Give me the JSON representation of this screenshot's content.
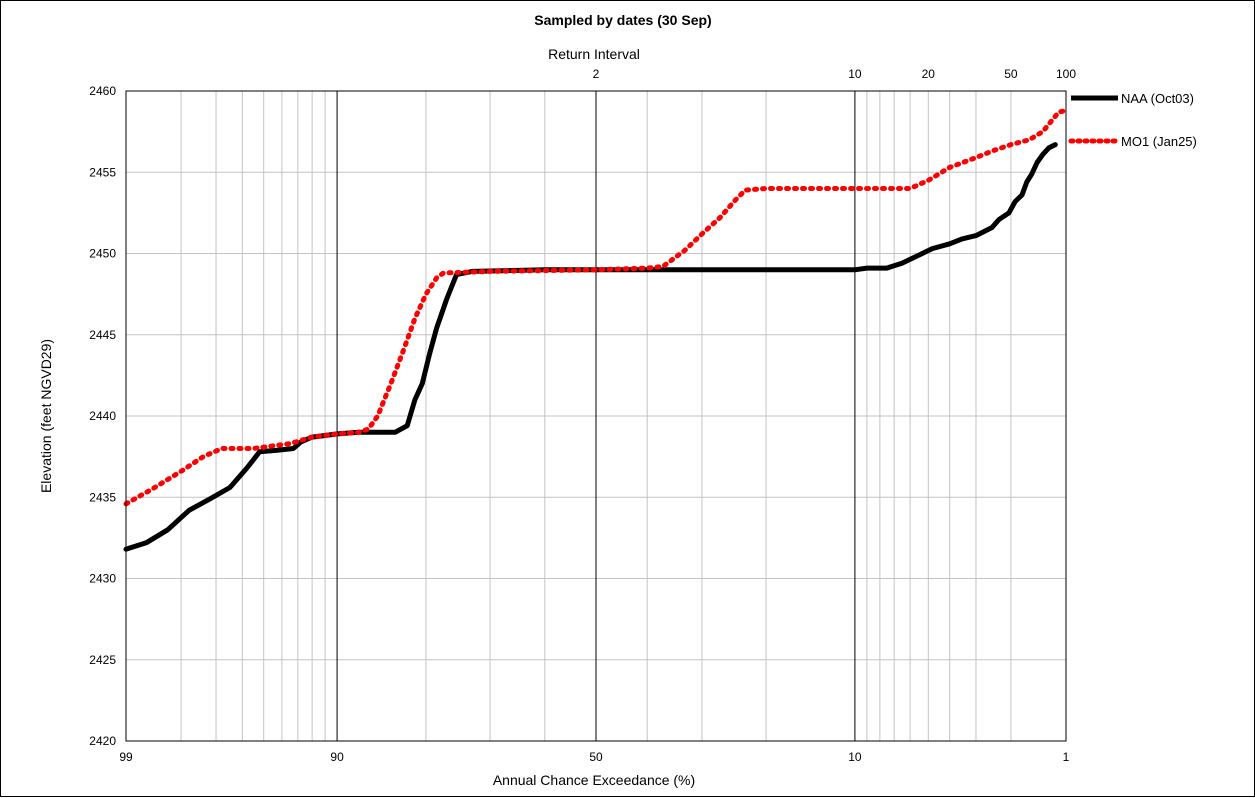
{
  "chart_data": {
    "type": "line",
    "title": "Sampled by dates (30 Sep)",
    "xlabel": "Annual Chance Exceedance (%)",
    "ylabel": "Elevation (feet NGVD29)",
    "x2label": "Return Interval",
    "x_scale": "normal probability (exceedance %)",
    "x_ticks": [
      "99",
      "90",
      "50",
      "10",
      "1"
    ],
    "x2_ticks": [
      "2",
      "10",
      "20",
      "50",
      "100"
    ],
    "ylim": [
      2420,
      2460
    ],
    "y_ticks": [
      "2420",
      "2425",
      "2430",
      "2435",
      "2440",
      "2445",
      "2450",
      "2455",
      "2460"
    ],
    "grid": true,
    "legend_position": "right",
    "series": [
      {
        "name": "NAA (Oct03)",
        "color": "#000000",
        "style": "solid",
        "points": [
          [
            99,
            2431.8
          ],
          [
            98.7,
            2432.2
          ],
          [
            98.3,
            2433.0
          ],
          [
            97.8,
            2434.2
          ],
          [
            97.2,
            2434.9
          ],
          [
            96.5,
            2435.6
          ],
          [
            95.8,
            2436.8
          ],
          [
            95.2,
            2437.8
          ],
          [
            94.2,
            2437.9
          ],
          [
            93.3,
            2438.0
          ],
          [
            92.8,
            2438.4
          ],
          [
            92.0,
            2438.7
          ],
          [
            91.0,
            2438.8
          ],
          [
            90.0,
            2438.9
          ],
          [
            88.0,
            2439.0
          ],
          [
            84.0,
            2439.0
          ],
          [
            82.5,
            2439.4
          ],
          [
            81.5,
            2441.0
          ],
          [
            80.5,
            2442.0
          ],
          [
            79.5,
            2443.8
          ],
          [
            78.5,
            2445.4
          ],
          [
            77.0,
            2447.2
          ],
          [
            75.5,
            2448.7
          ],
          [
            73.0,
            2448.9
          ],
          [
            60.0,
            2449.0
          ],
          [
            50.0,
            2449.0
          ],
          [
            40.0,
            2449.0
          ],
          [
            30.0,
            2449.0
          ],
          [
            20.0,
            2449.0
          ],
          [
            10.0,
            2449.0
          ],
          [
            9.0,
            2449.1
          ],
          [
            7.5,
            2449.1
          ],
          [
            6.5,
            2449.4
          ],
          [
            5.5,
            2449.9
          ],
          [
            4.8,
            2450.3
          ],
          [
            4.0,
            2450.6
          ],
          [
            3.5,
            2450.9
          ],
          [
            3.0,
            2451.1
          ],
          [
            2.5,
            2451.6
          ],
          [
            2.3,
            2452.1
          ],
          [
            2.05,
            2452.5
          ],
          [
            1.9,
            2453.2
          ],
          [
            1.75,
            2453.6
          ],
          [
            1.65,
            2454.4
          ],
          [
            1.55,
            2454.9
          ],
          [
            1.45,
            2455.6
          ],
          [
            1.35,
            2456.1
          ],
          [
            1.25,
            2456.5
          ],
          [
            1.15,
            2456.7
          ]
        ]
      },
      {
        "name": "MO1 (Jan25)",
        "color": "#ff0000",
        "style": "dotted",
        "points": [
          [
            99,
            2434.6
          ],
          [
            98.6,
            2435.5
          ],
          [
            98.0,
            2436.6
          ],
          [
            97.4,
            2437.5
          ],
          [
            96.8,
            2438.0
          ],
          [
            95.5,
            2438.0
          ],
          [
            93.5,
            2438.3
          ],
          [
            92.0,
            2438.7
          ],
          [
            90.0,
            2438.9
          ],
          [
            88.0,
            2439.0
          ],
          [
            87.0,
            2439.2
          ],
          [
            86.0,
            2440.0
          ],
          [
            84.5,
            2442.0
          ],
          [
            83.0,
            2444.0
          ],
          [
            81.5,
            2446.0
          ],
          [
            80.0,
            2447.5
          ],
          [
            78.5,
            2448.5
          ],
          [
            77.5,
            2448.8
          ],
          [
            70.0,
            2448.9
          ],
          [
            50.0,
            2449.0
          ],
          [
            40.0,
            2449.1
          ],
          [
            37.0,
            2449.2
          ],
          [
            33.0,
            2450.2
          ],
          [
            30.0,
            2451.2
          ],
          [
            27.0,
            2452.2
          ],
          [
            24.5,
            2453.3
          ],
          [
            23.0,
            2453.9
          ],
          [
            20.0,
            2454.0
          ],
          [
            10.0,
            2454.0
          ],
          [
            6.0,
            2454.0
          ],
          [
            5.0,
            2454.5
          ],
          [
            4.0,
            2455.3
          ],
          [
            3.0,
            2455.9
          ],
          [
            2.5,
            2456.3
          ],
          [
            2.0,
            2456.7
          ],
          [
            1.6,
            2457.0
          ],
          [
            1.35,
            2457.5
          ],
          [
            1.2,
            2458.2
          ],
          [
            1.1,
            2458.7
          ],
          [
            1.0,
            2458.8
          ]
        ]
      }
    ]
  }
}
